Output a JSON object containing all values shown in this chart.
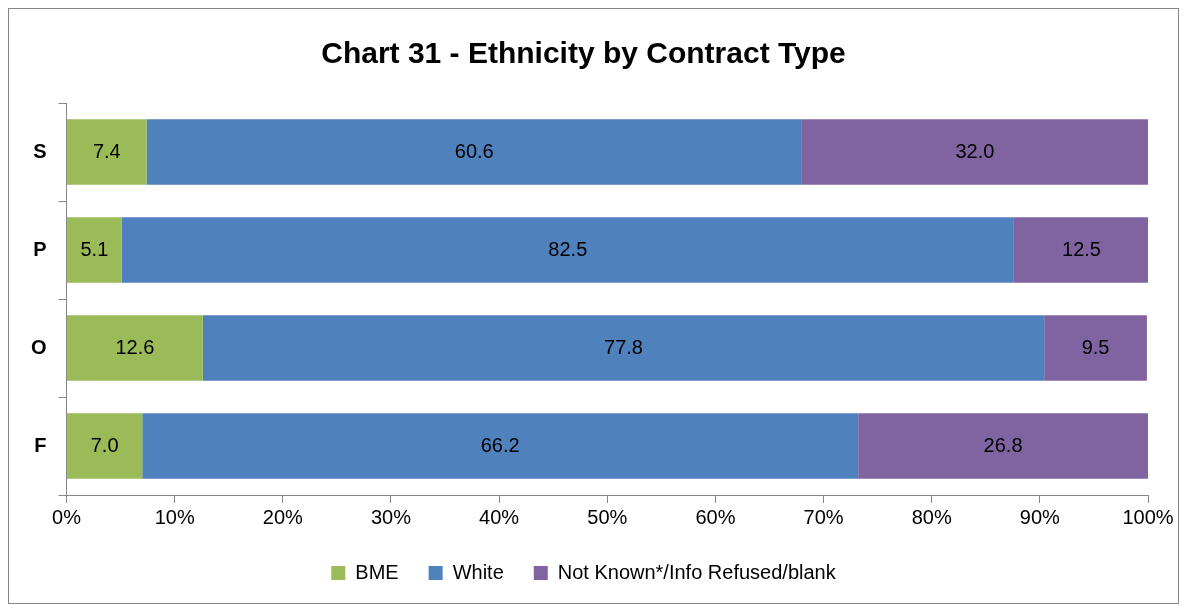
{
  "chart_data": {
    "type": "bar",
    "title": "Chart 31 - Ethnicity by Contract Type",
    "orientation": "horizontal",
    "stacked": true,
    "categories": [
      "S",
      "P",
      "O",
      "F"
    ],
    "series": [
      {
        "name": "BME",
        "color": "#9bbb59",
        "values": [
          7.4,
          5.1,
          12.6,
          7.0
        ],
        "value_labels": [
          "7.4",
          "5.1",
          "12.6",
          "7.0"
        ]
      },
      {
        "name": "White",
        "color": "#4f81bd",
        "values": [
          60.6,
          82.5,
          77.8,
          66.2
        ],
        "value_labels": [
          "60.6",
          "82.5",
          "77.8",
          "66.2"
        ]
      },
      {
        "name": "Not Known*/Info Refused/blank",
        "color": "#8064a2",
        "values": [
          32.0,
          12.5,
          9.5,
          26.8
        ],
        "value_labels": [
          "32.0",
          "12.5",
          "9.5",
          "26.8"
        ]
      }
    ],
    "xlim": [
      0,
      100
    ],
    "xticks": [
      {
        "value": 0,
        "label": "0%"
      },
      {
        "value": 10,
        "label": "10%"
      },
      {
        "value": 20,
        "label": "20%"
      },
      {
        "value": 30,
        "label": "30%"
      },
      {
        "value": 40,
        "label": "40%"
      },
      {
        "value": 50,
        "label": "50%"
      },
      {
        "value": 60,
        "label": "60%"
      },
      {
        "value": 70,
        "label": "70%"
      },
      {
        "value": 80,
        "label": "80%"
      },
      {
        "value": 90,
        "label": "90%"
      },
      {
        "value": 100,
        "label": "100%"
      }
    ],
    "grid": false,
    "legend": "bottom"
  }
}
